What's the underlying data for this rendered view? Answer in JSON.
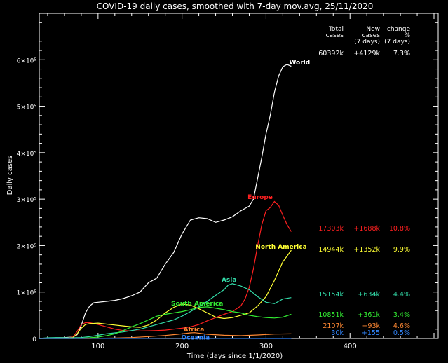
{
  "chart_data": {
    "type": "line",
    "title": "COVID-19 daily cases, smoothed with 7-day mov.avg, 25/11/2020",
    "xlabel": "Time (days since 1/1/2020)",
    "ylabel": "Daily cases",
    "xlim": [
      30,
      505
    ],
    "ylim": [
      0,
      700000
    ],
    "x_ticks": [
      100,
      200,
      300,
      400
    ],
    "y_ticks": [
      {
        "value": 0,
        "label": "0"
      },
      {
        "value": 100000,
        "label": "1×10⁵"
      },
      {
        "value": 200000,
        "label": "2×10⁵"
      },
      {
        "value": 300000,
        "label": "3×10⁵"
      },
      {
        "value": 400000,
        "label": "4×10⁵"
      },
      {
        "value": 500000,
        "label": "5×10⁵"
      },
      {
        "value": 600000,
        "label": "6×10⁵"
      }
    ],
    "grid": false,
    "table_headers": [
      {
        "key": "total",
        "lines": [
          "Total",
          "cases"
        ]
      },
      {
        "key": "new",
        "lines": [
          "New",
          "cases",
          "(7 days)"
        ]
      },
      {
        "key": "change",
        "lines": [
          "change",
          "%",
          "(7 days)"
        ]
      }
    ],
    "series": [
      {
        "name": "World",
        "color": "#ffffff",
        "total": "60392k",
        "new": "+4129k",
        "change": "7.3%",
        "points": [
          [
            30,
            0
          ],
          [
            50,
            1500
          ],
          [
            60,
            2000
          ],
          [
            70,
            3000
          ],
          [
            75,
            8000
          ],
          [
            80,
            28000
          ],
          [
            85,
            55000
          ],
          [
            90,
            70000
          ],
          [
            95,
            77000
          ],
          [
            100,
            78000
          ],
          [
            110,
            80000
          ],
          [
            120,
            82000
          ],
          [
            130,
            86000
          ],
          [
            140,
            92000
          ],
          [
            150,
            100000
          ],
          [
            160,
            120000
          ],
          [
            170,
            130000
          ],
          [
            180,
            160000
          ],
          [
            190,
            185000
          ],
          [
            200,
            225000
          ],
          [
            210,
            255000
          ],
          [
            220,
            260000
          ],
          [
            230,
            258000
          ],
          [
            240,
            250000
          ],
          [
            250,
            255000
          ],
          [
            260,
            262000
          ],
          [
            270,
            275000
          ],
          [
            280,
            285000
          ],
          [
            285,
            300000
          ],
          [
            290,
            345000
          ],
          [
            295,
            390000
          ],
          [
            300,
            440000
          ],
          [
            305,
            480000
          ],
          [
            310,
            530000
          ],
          [
            315,
            565000
          ],
          [
            320,
            585000
          ],
          [
            325,
            590000
          ],
          [
            330,
            586000
          ]
        ]
      },
      {
        "name": "Europe",
        "color": "#ff2020",
        "total": "17303k",
        "new": "+1688k",
        "change": "10.8%",
        "points": [
          [
            30,
            0
          ],
          [
            60,
            500
          ],
          [
            70,
            3000
          ],
          [
            75,
            15000
          ],
          [
            80,
            30000
          ],
          [
            85,
            34000
          ],
          [
            90,
            34000
          ],
          [
            100,
            30000
          ],
          [
            110,
            25000
          ],
          [
            120,
            20000
          ],
          [
            130,
            17000
          ],
          [
            140,
            16000
          ],
          [
            150,
            16000
          ],
          [
            160,
            16500
          ],
          [
            170,
            17000
          ],
          [
            180,
            18000
          ],
          [
            190,
            20000
          ],
          [
            200,
            22000
          ],
          [
            210,
            25000
          ],
          [
            220,
            30000
          ],
          [
            230,
            38000
          ],
          [
            240,
            45000
          ],
          [
            250,
            52000
          ],
          [
            260,
            58000
          ],
          [
            270,
            70000
          ],
          [
            275,
            85000
          ],
          [
            280,
            110000
          ],
          [
            285,
            150000
          ],
          [
            290,
            200000
          ],
          [
            295,
            245000
          ],
          [
            300,
            275000
          ],
          [
            305,
            282000
          ],
          [
            310,
            295000
          ],
          [
            315,
            287000
          ],
          [
            320,
            265000
          ],
          [
            325,
            245000
          ],
          [
            330,
            230000
          ]
        ]
      },
      {
        "name": "North America",
        "color": "#ffff33",
        "total": "14944k",
        "new": "+1352k",
        "change": "9.9%",
        "points": [
          [
            30,
            0
          ],
          [
            60,
            500
          ],
          [
            70,
            2000
          ],
          [
            75,
            10000
          ],
          [
            80,
            22000
          ],
          [
            85,
            30000
          ],
          [
            90,
            32000
          ],
          [
            100,
            33000
          ],
          [
            110,
            31000
          ],
          [
            120,
            29000
          ],
          [
            130,
            27000
          ],
          [
            140,
            25000
          ],
          [
            150,
            24000
          ],
          [
            160,
            29000
          ],
          [
            170,
            40000
          ],
          [
            180,
            55000
          ],
          [
            190,
            67000
          ],
          [
            200,
            74000
          ],
          [
            210,
            72000
          ],
          [
            220,
            64000
          ],
          [
            230,
            55000
          ],
          [
            240,
            46000
          ],
          [
            250,
            43000
          ],
          [
            260,
            45000
          ],
          [
            270,
            50000
          ],
          [
            280,
            55000
          ],
          [
            290,
            70000
          ],
          [
            300,
            90000
          ],
          [
            310,
            125000
          ],
          [
            320,
            165000
          ],
          [
            330,
            190000
          ]
        ]
      },
      {
        "name": "Asia",
        "color": "#33ddaa",
        "total": "15154k",
        "new": "+634k",
        "change": "4.4%",
        "points": [
          [
            30,
            0
          ],
          [
            40,
            1500
          ],
          [
            50,
            2000
          ],
          [
            60,
            1500
          ],
          [
            70,
            1500
          ],
          [
            80,
            2000
          ],
          [
            90,
            4000
          ],
          [
            100,
            7000
          ],
          [
            110,
            10000
          ],
          [
            120,
            12000
          ],
          [
            130,
            14000
          ],
          [
            140,
            17000
          ],
          [
            150,
            20000
          ],
          [
            160,
            25000
          ],
          [
            170,
            30000
          ],
          [
            180,
            35000
          ],
          [
            190,
            40000
          ],
          [
            200,
            48000
          ],
          [
            210,
            58000
          ],
          [
            220,
            68000
          ],
          [
            230,
            80000
          ],
          [
            240,
            93000
          ],
          [
            250,
            105000
          ],
          [
            255,
            115000
          ],
          [
            260,
            118000
          ],
          [
            270,
            113000
          ],
          [
            280,
            105000
          ],
          [
            290,
            90000
          ],
          [
            300,
            78000
          ],
          [
            310,
            75000
          ],
          [
            320,
            85000
          ],
          [
            330,
            88000
          ]
        ]
      },
      {
        "name": "South America",
        "color": "#33ee33",
        "total": "10851k",
        "new": "+361k",
        "change": "3.4%",
        "points": [
          [
            30,
            0
          ],
          [
            70,
            0
          ],
          [
            80,
            500
          ],
          [
            90,
            1500
          ],
          [
            100,
            3000
          ],
          [
            110,
            6000
          ],
          [
            120,
            10000
          ],
          [
            130,
            17000
          ],
          [
            140,
            25000
          ],
          [
            150,
            32000
          ],
          [
            160,
            40000
          ],
          [
            170,
            48000
          ],
          [
            180,
            52000
          ],
          [
            190,
            55000
          ],
          [
            200,
            58000
          ],
          [
            210,
            62000
          ],
          [
            220,
            67000
          ],
          [
            230,
            68000
          ],
          [
            240,
            65000
          ],
          [
            250,
            62000
          ],
          [
            260,
            58000
          ],
          [
            270,
            55000
          ],
          [
            280,
            50000
          ],
          [
            290,
            47000
          ],
          [
            300,
            45000
          ],
          [
            310,
            44000
          ],
          [
            320,
            46000
          ],
          [
            330,
            52000
          ]
        ]
      },
      {
        "name": "Africa",
        "color": "#ff8833",
        "total": "2107k",
        "new": "+93k",
        "change": "4.6%",
        "points": [
          [
            30,
            0
          ],
          [
            90,
            0
          ],
          [
            100,
            500
          ],
          [
            120,
            1000
          ],
          [
            140,
            2000
          ],
          [
            160,
            4000
          ],
          [
            180,
            6500
          ],
          [
            200,
            10000
          ],
          [
            210,
            12000
          ],
          [
            215,
            12500
          ],
          [
            230,
            9000
          ],
          [
            250,
            7000
          ],
          [
            270,
            6000
          ],
          [
            290,
            7500
          ],
          [
            310,
            9500
          ],
          [
            330,
            10000
          ]
        ]
      },
      {
        "name": "Oceania",
        "color": "#3388ff",
        "total": "30k",
        "new": "+155",
        "change": "0.5%",
        "points": [
          [
            30,
            0
          ],
          [
            80,
            200
          ],
          [
            90,
            400
          ],
          [
            110,
            100
          ],
          [
            150,
            200
          ],
          [
            180,
            400
          ],
          [
            200,
            500
          ],
          [
            220,
            300
          ],
          [
            250,
            150
          ],
          [
            300,
            50
          ],
          [
            330,
            50
          ]
        ]
      }
    ]
  }
}
